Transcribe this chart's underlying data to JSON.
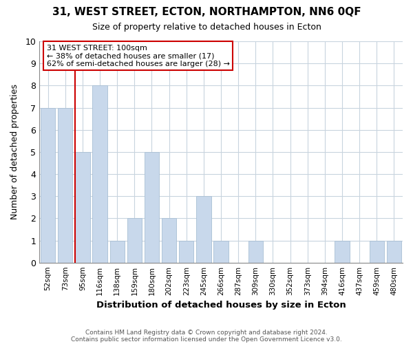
{
  "title": "31, WEST STREET, ECTON, NORTHAMPTON, NN6 0QF",
  "subtitle": "Size of property relative to detached houses in Ecton",
  "xlabel": "Distribution of detached houses by size in Ecton",
  "ylabel": "Number of detached properties",
  "categories": [
    "52sqm",
    "73sqm",
    "95sqm",
    "116sqm",
    "138sqm",
    "159sqm",
    "180sqm",
    "202sqm",
    "223sqm",
    "245sqm",
    "266sqm",
    "287sqm",
    "309sqm",
    "330sqm",
    "352sqm",
    "373sqm",
    "394sqm",
    "416sqm",
    "437sqm",
    "459sqm",
    "480sqm"
  ],
  "values": [
    7,
    7,
    5,
    8,
    1,
    2,
    5,
    2,
    1,
    3,
    1,
    0,
    1,
    0,
    0,
    0,
    0,
    1,
    0,
    1,
    1
  ],
  "bar_color": "#c8d8eb",
  "bar_edge_color": "#a8bfd4",
  "red_line_index": 2,
  "ylim": [
    0,
    10
  ],
  "yticks": [
    0,
    1,
    2,
    3,
    4,
    5,
    6,
    7,
    8,
    9,
    10
  ],
  "annotation_title": "31 WEST STREET: 100sqm",
  "annotation_line1": "← 38% of detached houses are smaller (17)",
  "annotation_line2": "62% of semi-detached houses are larger (28) →",
  "annotation_box_color": "#ffffff",
  "annotation_box_edge": "#cc0000",
  "footer_line1": "Contains HM Land Registry data © Crown copyright and database right 2024.",
  "footer_line2": "Contains public sector information licensed under the Open Government Licence v3.0.",
  "background_color": "#ffffff",
  "grid_color": "#c8d4de"
}
